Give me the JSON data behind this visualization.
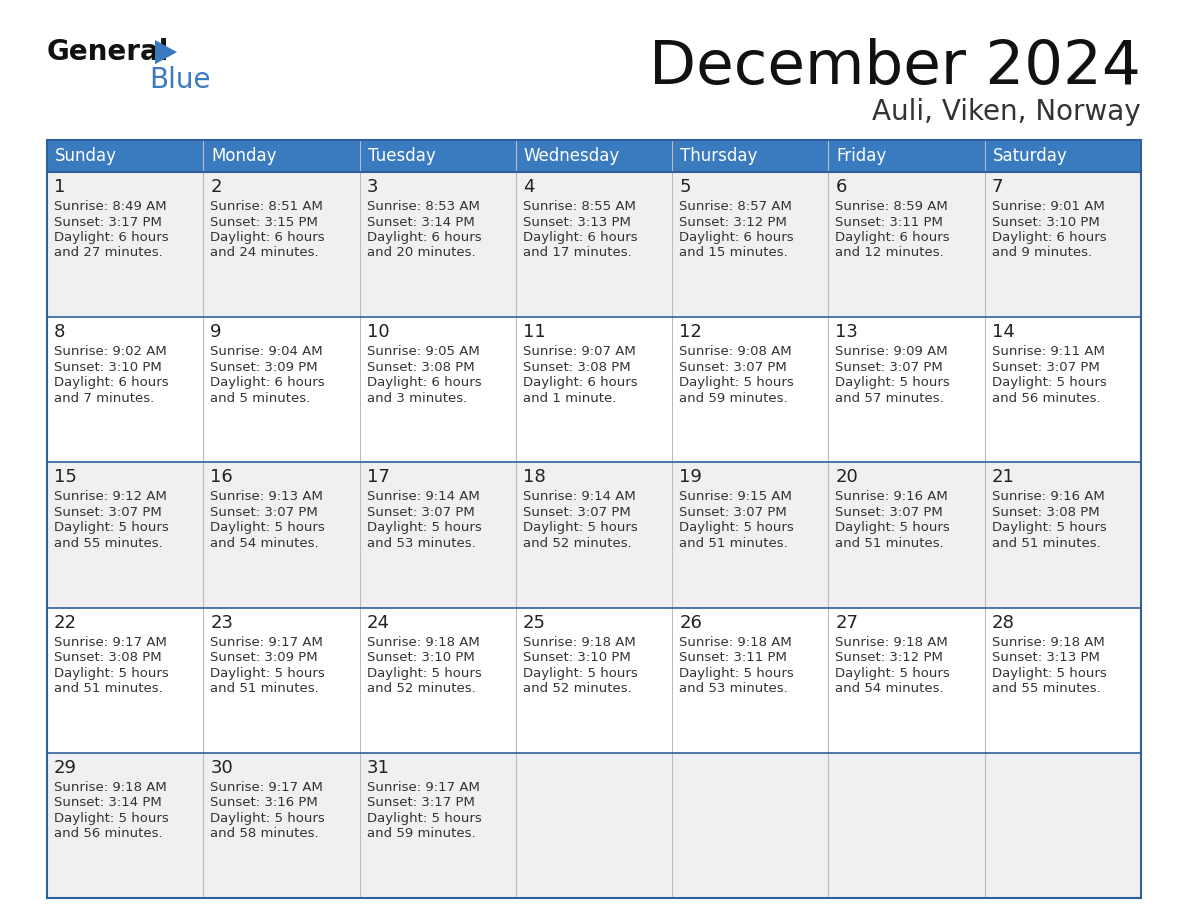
{
  "title": "December 2024",
  "subtitle": "Auli, Viken, Norway",
  "header_color": "#3a7bbf",
  "header_text_color": "#ffffff",
  "bg_color": "#ffffff",
  "row_bg_colors": [
    "#f0f0f0",
    "#ffffff",
    "#f0f0f0",
    "#ffffff",
    "#f0f0f0"
  ],
  "border_color": "#2e5f9e",
  "text_color": "#333333",
  "day_names": [
    "Sunday",
    "Monday",
    "Tuesday",
    "Wednesday",
    "Thursday",
    "Friday",
    "Saturday"
  ],
  "days": [
    {
      "date": 1,
      "col": 0,
      "row": 0,
      "sunrise": "8:49 AM",
      "sunset": "3:17 PM",
      "daylight": "6 hours and 27 minutes."
    },
    {
      "date": 2,
      "col": 1,
      "row": 0,
      "sunrise": "8:51 AM",
      "sunset": "3:15 PM",
      "daylight": "6 hours and 24 minutes."
    },
    {
      "date": 3,
      "col": 2,
      "row": 0,
      "sunrise": "8:53 AM",
      "sunset": "3:14 PM",
      "daylight": "6 hours and 20 minutes."
    },
    {
      "date": 4,
      "col": 3,
      "row": 0,
      "sunrise": "8:55 AM",
      "sunset": "3:13 PM",
      "daylight": "6 hours and 17 minutes."
    },
    {
      "date": 5,
      "col": 4,
      "row": 0,
      "sunrise": "8:57 AM",
      "sunset": "3:12 PM",
      "daylight": "6 hours and 15 minutes."
    },
    {
      "date": 6,
      "col": 5,
      "row": 0,
      "sunrise": "8:59 AM",
      "sunset": "3:11 PM",
      "daylight": "6 hours and 12 minutes."
    },
    {
      "date": 7,
      "col": 6,
      "row": 0,
      "sunrise": "9:01 AM",
      "sunset": "3:10 PM",
      "daylight": "6 hours and 9 minutes."
    },
    {
      "date": 8,
      "col": 0,
      "row": 1,
      "sunrise": "9:02 AM",
      "sunset": "3:10 PM",
      "daylight": "6 hours and 7 minutes."
    },
    {
      "date": 9,
      "col": 1,
      "row": 1,
      "sunrise": "9:04 AM",
      "sunset": "3:09 PM",
      "daylight": "6 hours and 5 minutes."
    },
    {
      "date": 10,
      "col": 2,
      "row": 1,
      "sunrise": "9:05 AM",
      "sunset": "3:08 PM",
      "daylight": "6 hours and 3 minutes."
    },
    {
      "date": 11,
      "col": 3,
      "row": 1,
      "sunrise": "9:07 AM",
      "sunset": "3:08 PM",
      "daylight": "6 hours and 1 minute."
    },
    {
      "date": 12,
      "col": 4,
      "row": 1,
      "sunrise": "9:08 AM",
      "sunset": "3:07 PM",
      "daylight": "5 hours and 59 minutes."
    },
    {
      "date": 13,
      "col": 5,
      "row": 1,
      "sunrise": "9:09 AM",
      "sunset": "3:07 PM",
      "daylight": "5 hours and 57 minutes."
    },
    {
      "date": 14,
      "col": 6,
      "row": 1,
      "sunrise": "9:11 AM",
      "sunset": "3:07 PM",
      "daylight": "5 hours and 56 minutes."
    },
    {
      "date": 15,
      "col": 0,
      "row": 2,
      "sunrise": "9:12 AM",
      "sunset": "3:07 PM",
      "daylight": "5 hours and 55 minutes."
    },
    {
      "date": 16,
      "col": 1,
      "row": 2,
      "sunrise": "9:13 AM",
      "sunset": "3:07 PM",
      "daylight": "5 hours and 54 minutes."
    },
    {
      "date": 17,
      "col": 2,
      "row": 2,
      "sunrise": "9:14 AM",
      "sunset": "3:07 PM",
      "daylight": "5 hours and 53 minutes."
    },
    {
      "date": 18,
      "col": 3,
      "row": 2,
      "sunrise": "9:14 AM",
      "sunset": "3:07 PM",
      "daylight": "5 hours and 52 minutes."
    },
    {
      "date": 19,
      "col": 4,
      "row": 2,
      "sunrise": "9:15 AM",
      "sunset": "3:07 PM",
      "daylight": "5 hours and 51 minutes."
    },
    {
      "date": 20,
      "col": 5,
      "row": 2,
      "sunrise": "9:16 AM",
      "sunset": "3:07 PM",
      "daylight": "5 hours and 51 minutes."
    },
    {
      "date": 21,
      "col": 6,
      "row": 2,
      "sunrise": "9:16 AM",
      "sunset": "3:08 PM",
      "daylight": "5 hours and 51 minutes."
    },
    {
      "date": 22,
      "col": 0,
      "row": 3,
      "sunrise": "9:17 AM",
      "sunset": "3:08 PM",
      "daylight": "5 hours and 51 minutes."
    },
    {
      "date": 23,
      "col": 1,
      "row": 3,
      "sunrise": "9:17 AM",
      "sunset": "3:09 PM",
      "daylight": "5 hours and 51 minutes."
    },
    {
      "date": 24,
      "col": 2,
      "row": 3,
      "sunrise": "9:18 AM",
      "sunset": "3:10 PM",
      "daylight": "5 hours and 52 minutes."
    },
    {
      "date": 25,
      "col": 3,
      "row": 3,
      "sunrise": "9:18 AM",
      "sunset": "3:10 PM",
      "daylight": "5 hours and 52 minutes."
    },
    {
      "date": 26,
      "col": 4,
      "row": 3,
      "sunrise": "9:18 AM",
      "sunset": "3:11 PM",
      "daylight": "5 hours and 53 minutes."
    },
    {
      "date": 27,
      "col": 5,
      "row": 3,
      "sunrise": "9:18 AM",
      "sunset": "3:12 PM",
      "daylight": "5 hours and 54 minutes."
    },
    {
      "date": 28,
      "col": 6,
      "row": 3,
      "sunrise": "9:18 AM",
      "sunset": "3:13 PM",
      "daylight": "5 hours and 55 minutes."
    },
    {
      "date": 29,
      "col": 0,
      "row": 4,
      "sunrise": "9:18 AM",
      "sunset": "3:14 PM",
      "daylight": "5 hours and 56 minutes."
    },
    {
      "date": 30,
      "col": 1,
      "row": 4,
      "sunrise": "9:17 AM",
      "sunset": "3:16 PM",
      "daylight": "5 hours and 58 minutes."
    },
    {
      "date": 31,
      "col": 2,
      "row": 4,
      "sunrise": "9:17 AM",
      "sunset": "3:17 PM",
      "daylight": "5 hours and 59 minutes."
    }
  ],
  "figsize": [
    11.88,
    9.18
  ],
  "dpi": 100
}
